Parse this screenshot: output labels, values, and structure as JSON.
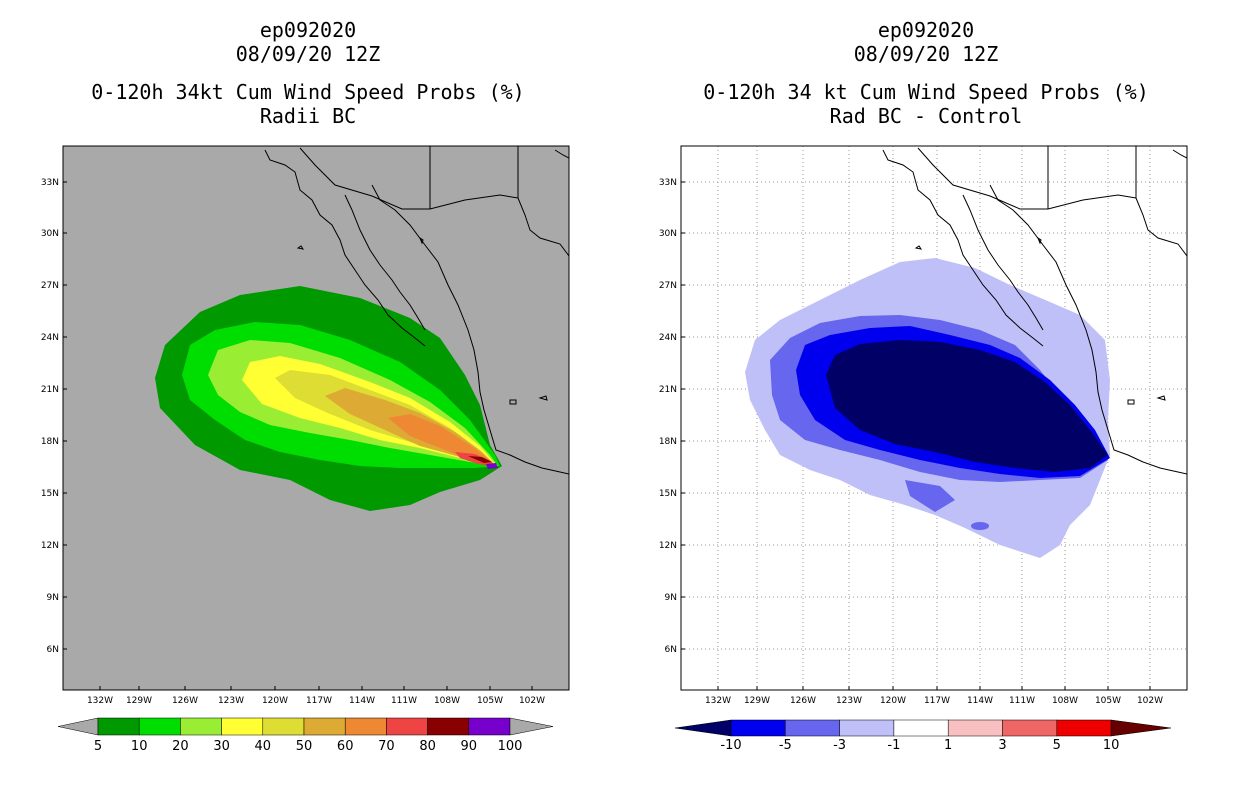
{
  "panels": [
    {
      "storm_id": "ep092020",
      "datetime": "08/09/20 12Z",
      "title": "0-120h 34kt Cum Wind Speed Probs (%)",
      "subtitle": "Radii BC",
      "background_color": "#a9a9a9",
      "lat_labels": [
        "33N",
        "30N",
        "27N",
        "24N",
        "21N",
        "18N",
        "15N",
        "12N",
        "9N",
        "6N"
      ],
      "lon_labels": [
        "132W",
        "129W",
        "126W",
        "123W",
        "120W",
        "117W",
        "114W",
        "111W",
        "108W",
        "105W",
        "102W"
      ],
      "colorbar": {
        "colors": [
          "#009900",
          "#00dd00",
          "#99ee33",
          "#ffff33",
          "#dddd33",
          "#ddaa33",
          "#ee8833",
          "#ee4444",
          "#880000",
          "#7700cc"
        ],
        "labels": [
          "5",
          "10",
          "20",
          "30",
          "40",
          "50",
          "60",
          "70",
          "80",
          "90",
          "100"
        ]
      }
    },
    {
      "storm_id": "ep092020",
      "datetime": "08/09/20 12Z",
      "title": "0-120h 34 kt Cum Wind Speed Probs (%)",
      "subtitle": "Rad BC - Control",
      "background_color": "#ffffff",
      "lat_labels": [
        "33N",
        "30N",
        "27N",
        "24N",
        "21N",
        "18N",
        "15N",
        "12N",
        "9N",
        "6N"
      ],
      "lon_labels": [
        "132W",
        "129W",
        "126W",
        "123W",
        "120W",
        "117W",
        "114W",
        "111W",
        "108W",
        "105W",
        "102W"
      ],
      "colorbar": {
        "colors": [
          "#000066",
          "#0000ee",
          "#6666ee",
          "#c0c0f8",
          "#ffffff",
          "#f8c0c0",
          "#ee6666",
          "#ee0000",
          "#660000"
        ],
        "labels": [
          "-10",
          "-5",
          "-3",
          "-1",
          "1",
          "3",
          "5",
          "10"
        ]
      }
    }
  ]
}
